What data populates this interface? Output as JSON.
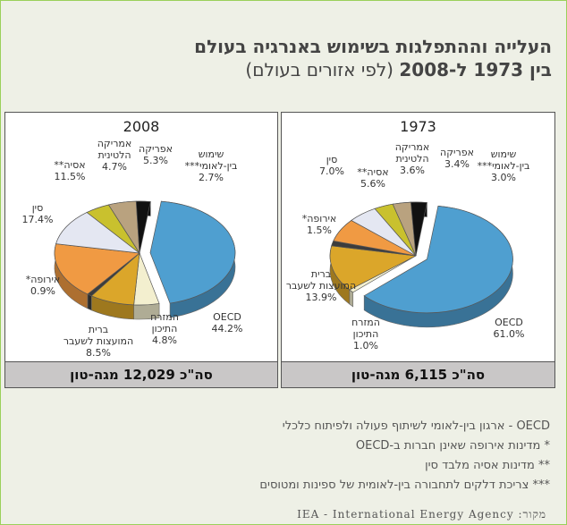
{
  "title": {
    "line1": "העלייה וההתפלגות בשימוש באנרגיה בעולם",
    "line2_bold": "בין 1973 ל-2008",
    "line2_rest": "(לפי אזורים בעולם)"
  },
  "colors": {
    "OECD": "#4f9fd0",
    "middle_east": "#f3efcf",
    "former_ussr": "#dba62a",
    "europe": "#3c3c3c",
    "china": "#f09a43",
    "asia": "#e4e7f2",
    "latin_america": "#c9c12e",
    "africa": "#b9a27f",
    "bunkers": "#111111"
  },
  "chart_data": [
    {
      "type": "pie",
      "title": "2008",
      "total": "סה\"כ 12,029 מגה-טון",
      "slices": [
        {
          "key": "OECD",
          "name": "OECD",
          "value": 44.2,
          "label": "44.2%"
        },
        {
          "key": "middle_east",
          "name": "המזרח התיכון",
          "value": 4.8,
          "label": "4.8%"
        },
        {
          "key": "former_ussr",
          "name": "ברית המועצות לשעבר",
          "value": 8.5,
          "label": "8.5%"
        },
        {
          "key": "europe",
          "name": "אירופה*",
          "value": 0.9,
          "label": "0.9%"
        },
        {
          "key": "china",
          "name": "סין",
          "value": 17.4,
          "label": "17.4%"
        },
        {
          "key": "asia",
          "name": "אסיה**",
          "value": 11.5,
          "label": "11.5%"
        },
        {
          "key": "latin_america",
          "name": "אמריקה הלטינית",
          "value": 4.7,
          "label": "4.7%"
        },
        {
          "key": "africa",
          "name": "אפריקה",
          "value": 5.3,
          "label": "5.3%"
        },
        {
          "key": "bunkers",
          "name": "שימוש בין-לאומי***",
          "value": 2.7,
          "label": "2.7%"
        }
      ]
    },
    {
      "type": "pie",
      "title": "1973",
      "total": "סה\"כ 6,115 מגה-טון",
      "slices": [
        {
          "key": "OECD",
          "name": "OECD",
          "value": 61.0,
          "label": "61.0%"
        },
        {
          "key": "middle_east",
          "name": "המזרח התיכון",
          "value": 1.0,
          "label": "1.0%"
        },
        {
          "key": "former_ussr",
          "name": "ברית המועצות לשעבר",
          "value": 13.9,
          "label": "13.9%"
        },
        {
          "key": "europe",
          "name": "אירופה*",
          "value": 1.5,
          "label": "1.5%"
        },
        {
          "key": "china",
          "name": "סין",
          "value": 7.0,
          "label": "7.0%"
        },
        {
          "key": "asia",
          "name": "אסיה**",
          "value": 5.6,
          "label": "5.6%"
        },
        {
          "key": "latin_america",
          "name": "אמריקה הלטינית",
          "value": 3.6,
          "label": "3.6%"
        },
        {
          "key": "africa",
          "name": "אפריקה",
          "value": 3.4,
          "label": "3.4%"
        },
        {
          "key": "bunkers",
          "name": "שימוש בין-לאומי***",
          "value": 3.0,
          "label": "3.0%"
        }
      ]
    }
  ],
  "notes": [
    "OECD - ארגון בין-לאומי לשיתוף פעולה ולפיתוח כלכלי",
    "* מדינות אירופה שאינן חברות ב-OECD",
    "** מדינות אסיה מלבד סין",
    "*** צריכת דלקים לתחבורה בין-לאומית של ספינות ומטוסים"
  ],
  "source": "מקור: IEA - International Energy Agency"
}
